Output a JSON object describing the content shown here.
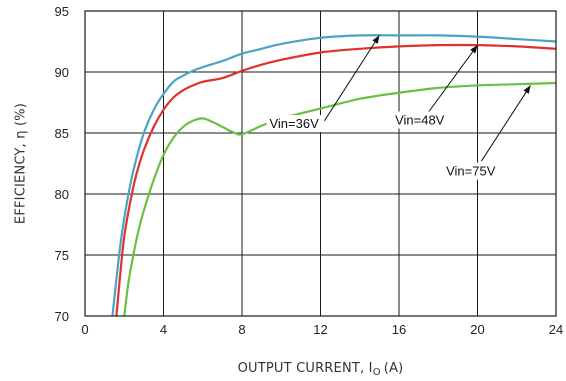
{
  "chart_data": {
    "type": "line",
    "xlabel": "OUTPUT CURRENT, I",
    "xlabel_subscript": "O",
    "xlabel_unit": "(A)",
    "ylabel": "EFFICIENCY, η  (%)",
    "xlim": [
      0,
      24
    ],
    "ylim": [
      70,
      95
    ],
    "xticks": [
      0,
      4,
      8,
      12,
      16,
      20,
      24
    ],
    "yticks": [
      70,
      75,
      80,
      85,
      90,
      95
    ],
    "grid": true,
    "colors": {
      "vin36": "#4aa3c2",
      "vin48": "#e03030",
      "vin75": "#6cbf45"
    },
    "series": [
      {
        "name": "Vin=36V",
        "key": "vin36",
        "x": [
          1.4,
          1.6,
          1.8,
          2.0,
          2.3,
          2.6,
          3.0,
          3.5,
          4.0,
          4.5,
          5.0,
          5.5,
          6.0,
          7.0,
          8.0,
          9.0,
          10.0,
          12.0,
          14.0,
          16.0,
          18.0,
          20.0,
          22.0,
          24.0
        ],
        "y": [
          70.0,
          73.0,
          75.8,
          78.0,
          80.7,
          82.8,
          85.0,
          86.9,
          88.2,
          89.2,
          89.7,
          90.1,
          90.4,
          90.9,
          91.5,
          91.9,
          92.3,
          92.8,
          93.0,
          93.0,
          93.0,
          92.9,
          92.7,
          92.5
        ]
      },
      {
        "name": "Vin=48V",
        "key": "vin48",
        "x": [
          1.6,
          1.8,
          2.0,
          2.3,
          2.6,
          3.0,
          3.5,
          4.0,
          4.5,
          5.0,
          5.5,
          6.0,
          7.0,
          8.0,
          9.0,
          10.0,
          12.0,
          14.0,
          16.0,
          18.0,
          20.0,
          22.0,
          24.0
        ],
        "y": [
          70.0,
          73.5,
          76.5,
          79.3,
          81.5,
          83.6,
          85.5,
          86.9,
          87.9,
          88.5,
          88.9,
          89.2,
          89.5,
          90.1,
          90.6,
          91.0,
          91.6,
          91.9,
          92.1,
          92.2,
          92.2,
          92.1,
          91.9
        ]
      },
      {
        "name": "Vin=75V",
        "key": "vin75",
        "x": [
          2.0,
          2.2,
          2.5,
          2.8,
          3.2,
          3.6,
          4.0,
          4.5,
          5.0,
          5.5,
          6.0,
          6.5,
          7.0,
          7.5,
          8.0,
          9.0,
          10.0,
          12.0,
          14.0,
          16.0,
          18.0,
          20.0,
          22.0,
          24.0
        ],
        "y": [
          70.0,
          72.6,
          75.3,
          77.5,
          79.7,
          81.6,
          83.2,
          84.6,
          85.5,
          86.0,
          86.2,
          85.9,
          85.5,
          85.1,
          84.9,
          85.6,
          86.2,
          87.0,
          87.8,
          88.3,
          88.7,
          88.9,
          89.0,
          89.1
        ]
      }
    ],
    "annotations": [
      {
        "text": "Vin=36V",
        "series": "vin36",
        "text_x": 9.4,
        "text_y": 85.4,
        "arrow_from": [
          12.2,
          86.0
        ],
        "arrow_to": [
          15.0,
          93.0
        ]
      },
      {
        "text": "Vin=48V",
        "series": "vin48",
        "text_x": 15.8,
        "text_y": 85.7,
        "arrow_from": [
          17.5,
          86.7
        ],
        "arrow_to": [
          20.0,
          92.2
        ]
      },
      {
        "text": "Vin=75V",
        "series": "vin75",
        "text_x": 18.4,
        "text_y": 81.5,
        "arrow_from": [
          20.2,
          82.7
        ],
        "arrow_to": [
          22.7,
          88.9
        ]
      }
    ]
  }
}
